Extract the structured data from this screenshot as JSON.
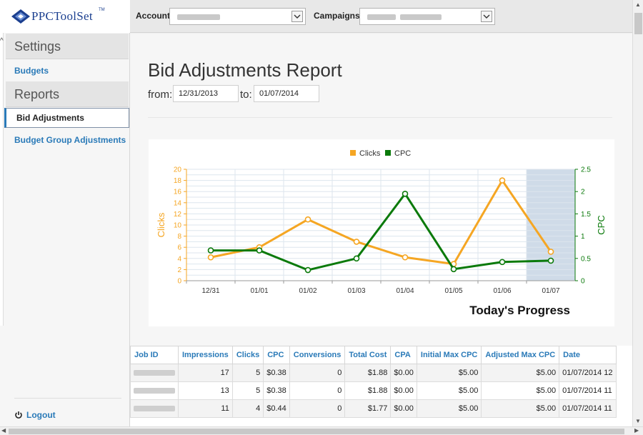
{
  "brand": {
    "name": "PPCToolSet",
    "tm": "TM"
  },
  "topbar": {
    "account_label": "Account",
    "campaigns_label": "Campaigns"
  },
  "sidebar": {
    "settings_heading": "Settings",
    "settings_items": [
      {
        "label": "Budgets"
      }
    ],
    "reports_heading": "Reports",
    "reports_items": [
      {
        "label": "Bid Adjustments",
        "active": true
      },
      {
        "label": "Budget Group Adjustments"
      }
    ],
    "logout_label": "Logout"
  },
  "page": {
    "title": "Bid Adjustments Report",
    "from_label": "from:",
    "from_value": "12/31/2013",
    "to_label": "to:",
    "to_value": "01/07/2014"
  },
  "chart_data": {
    "type": "line",
    "title": "Today's Progress",
    "categories": [
      "12/31",
      "01/01",
      "01/02",
      "01/03",
      "01/04",
      "01/05",
      "01/06",
      "01/07"
    ],
    "series": [
      {
        "name": "Clicks",
        "axis": "left",
        "color": "#f5a623",
        "values": [
          4.2,
          6,
          11,
          7,
          4.2,
          3,
          18,
          5.2
        ]
      },
      {
        "name": "CPC",
        "axis": "right",
        "color": "#0b7a0b",
        "values": [
          0.68,
          0.68,
          0.24,
          0.5,
          1.95,
          0.26,
          0.42,
          0.45
        ]
      }
    ],
    "y_left": {
      "label": "Clicks",
      "min": 0,
      "max": 20,
      "ticks": [
        "0",
        "2",
        "4",
        "6",
        "8",
        "10",
        "12",
        "14",
        "16",
        "18",
        "20"
      ]
    },
    "y_right": {
      "label": "CPC",
      "min": 0,
      "max": 2.5,
      "ticks": [
        "0",
        "0.5",
        "1",
        "1.5",
        "2",
        "2.5"
      ]
    },
    "highlight_category": "01/07",
    "legend_position": "top",
    "grid": true
  },
  "table": {
    "columns": [
      "Job ID",
      "Impressions",
      "Clicks",
      "CPC",
      "Conversions",
      "Total Cost",
      "CPA",
      "Initial Max CPC",
      "Adjusted Max CPC",
      "Date"
    ],
    "rows": [
      {
        "impressions": "17",
        "clicks": "5",
        "cpc": "$0.38",
        "conversions": "0",
        "total_cost": "$1.88",
        "cpa": "$0.00",
        "initial_max_cpc": "$5.00",
        "adjusted_max_cpc": "$5.00",
        "date": "01/07/2014 12"
      },
      {
        "impressions": "13",
        "clicks": "5",
        "cpc": "$0.38",
        "conversions": "0",
        "total_cost": "$1.88",
        "cpa": "$0.00",
        "initial_max_cpc": "$5.00",
        "adjusted_max_cpc": "$5.00",
        "date": "01/07/2014 11"
      },
      {
        "impressions": "11",
        "clicks": "4",
        "cpc": "$0.44",
        "conversions": "0",
        "total_cost": "$1.77",
        "cpa": "$0.00",
        "initial_max_cpc": "$5.00",
        "adjusted_max_cpc": "$5.00",
        "date": "01/07/2014 11"
      }
    ]
  }
}
